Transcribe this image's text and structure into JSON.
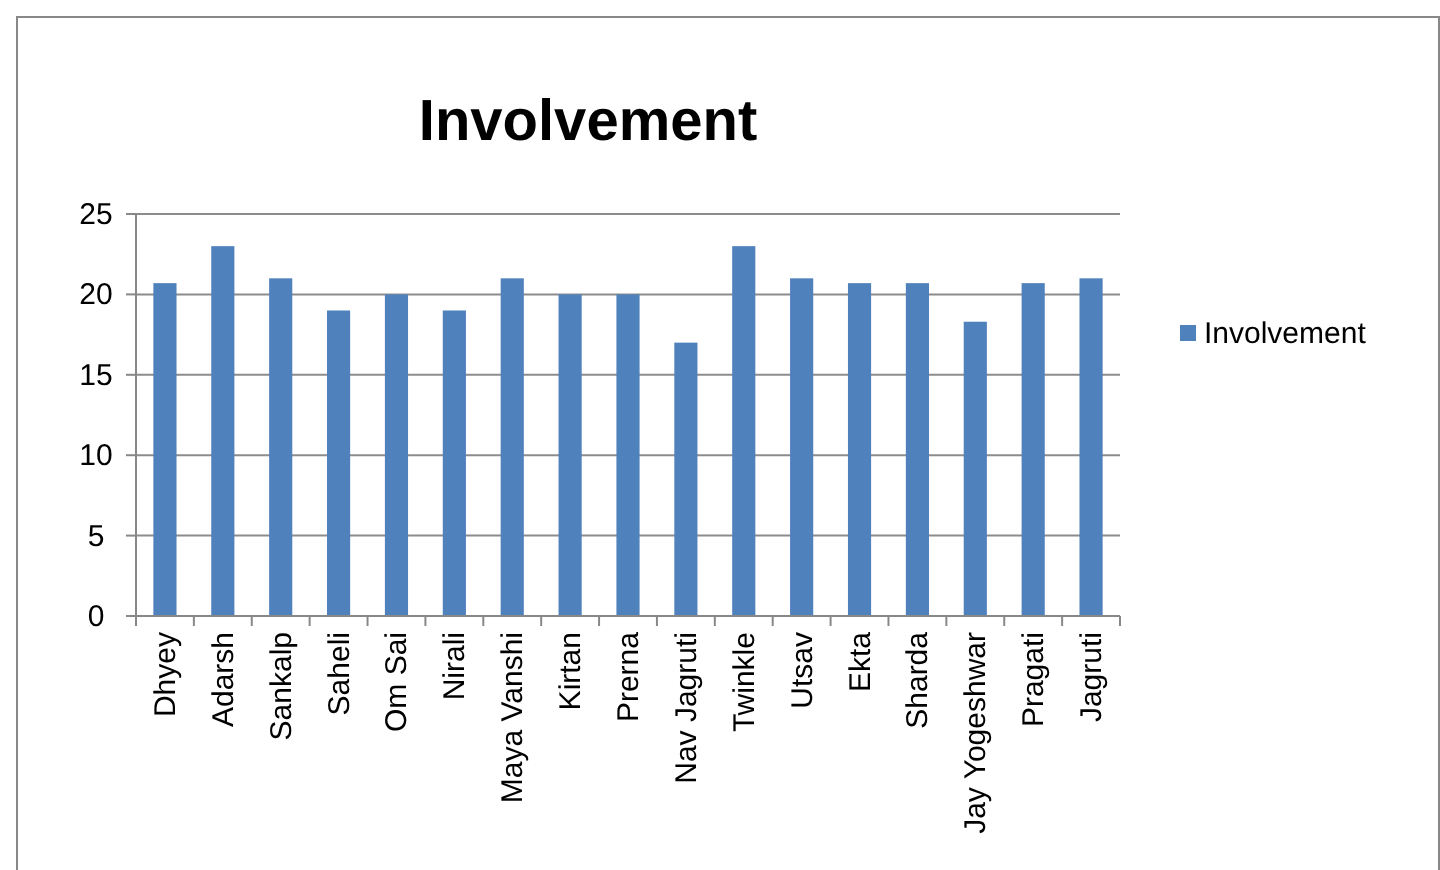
{
  "chart_data": {
    "type": "bar",
    "title": "Involvement",
    "categories": [
      "Dhyey",
      "Adarsh",
      "Sankalp",
      "Saheli",
      "Om Sai",
      "Nirali",
      "Maya Vanshi",
      "Kirtan",
      "Prerna",
      "Nav Jagruti",
      "Twinkle",
      "Utsav",
      "Ekta",
      "Sharda",
      "Jay Yogeshwar",
      "Pragati",
      "Jagruti"
    ],
    "series": [
      {
        "name": "Involvement",
        "color": "#4f81bd",
        "values": [
          20.7,
          23,
          21,
          19,
          20,
          19,
          21,
          20,
          20,
          17,
          23,
          21,
          20.7,
          20.7,
          18.3,
          20.7,
          21
        ]
      }
    ],
    "ylim": [
      0,
      25
    ],
    "yticks": [
      0,
      5,
      10,
      15,
      20,
      25
    ],
    "grid": "y",
    "legend": "right"
  }
}
